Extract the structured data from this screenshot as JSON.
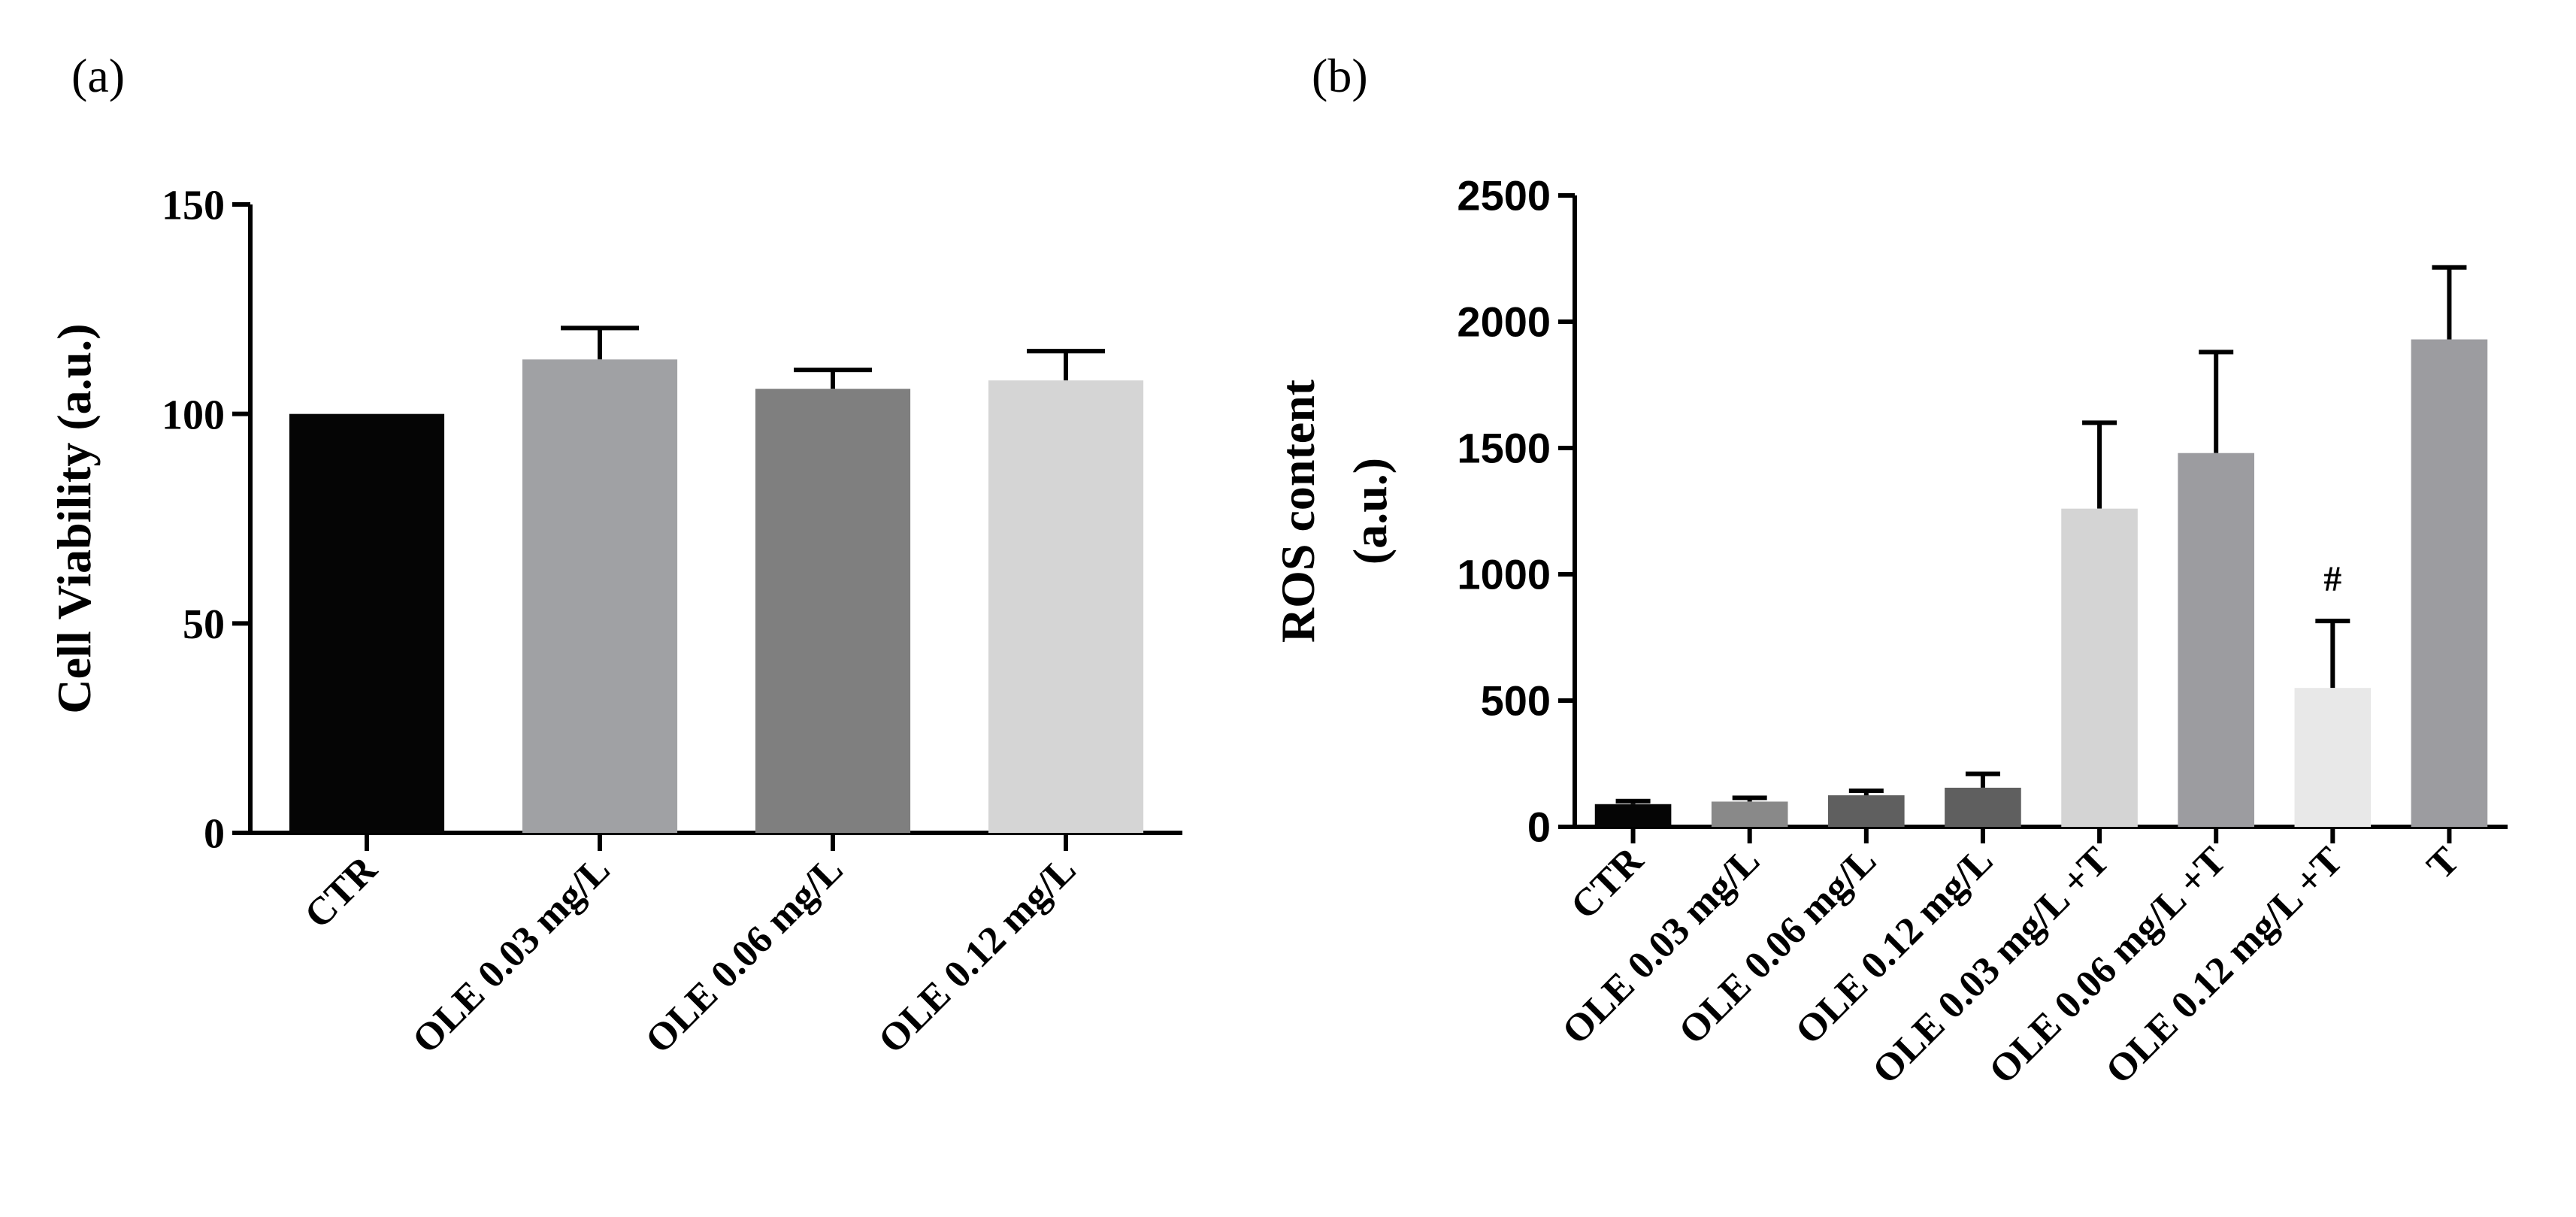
{
  "chart_data": [
    {
      "panel_label": "(a)",
      "type": "bar",
      "title": "",
      "xlabel": "",
      "ylabel": "Cell Viability (a.u.)",
      "ylim": [
        0,
        150
      ],
      "yticks": [
        0,
        50,
        100,
        150
      ],
      "grid": false,
      "categories": [
        "CTR",
        "OLE 0.03 mg/L",
        "OLE 0.06 mg/L",
        "OLE 0.12 mg/L"
      ],
      "values": [
        100,
        113,
        106,
        108
      ],
      "errors": [
        0,
        7.5,
        4.5,
        7
      ],
      "bar_colors": [
        "#050505",
        "#a0a1a4",
        "#7f7f7f",
        "#d5d5d5"
      ]
    },
    {
      "panel_label": "(b)",
      "type": "bar",
      "title": "",
      "xlabel": "",
      "ylabel_lines": [
        "ROS content",
        "(a.u.)"
      ],
      "ylim": [
        0,
        2500
      ],
      "yticks": [
        0,
        500,
        1000,
        1500,
        2000,
        2500
      ],
      "grid": false,
      "categories": [
        "CTR",
        "OLE 0.03 mg/L",
        "OLE 0.06 mg/L",
        "OLE 0.12 mg/L",
        "OLE 0.03 mg/L +T",
        "OLE 0.06 mg/L +T",
        "OLE 0.12 mg/L +T",
        "T"
      ],
      "values": [
        90,
        100,
        125,
        155,
        1260,
        1480,
        550,
        1930
      ],
      "errors": [
        12,
        15,
        18,
        55,
        340,
        400,
        265,
        285
      ],
      "bar_colors": [
        "#050505",
        "#898989",
        "#5f5f5f",
        "#5f5f5f",
        "#d4d4d4",
        "#9c9ca0",
        "#e8e8e8",
        "#9c9ca0"
      ],
      "annotations": [
        {
          "category": "OLE 0.12 mg/L +T",
          "text": "#"
        }
      ]
    }
  ]
}
